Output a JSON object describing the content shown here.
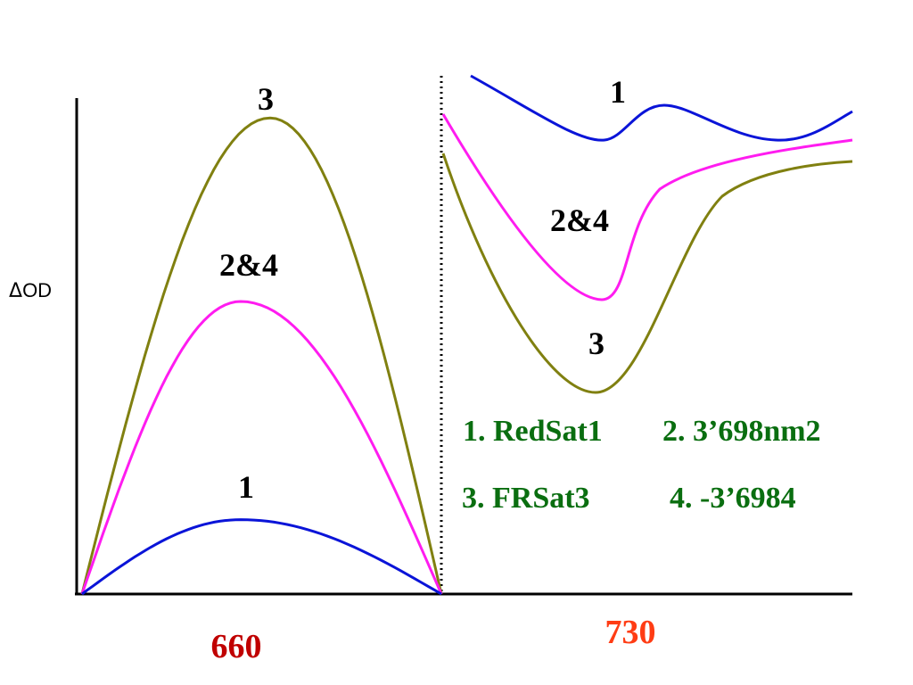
{
  "colors": {
    "series_1": "#0a14d8",
    "series_2_4": "#ff1cf0",
    "series_3": "#808010",
    "legend_green": "#0a6e10",
    "label_660": "#c00000",
    "label_730": "#ff3c14",
    "axis": "#000000"
  },
  "chart_data": [
    {
      "type": "line",
      "panel": "660",
      "xlabel": "660",
      "ylabel": "OD",
      "ylabel_symbol": "Δ",
      "grid": false,
      "series": [
        {
          "name": "1",
          "color": "#0a14d8",
          "peak": 0.15
        },
        {
          "name": "2&4",
          "color": "#ff1cf0",
          "peak": 0.59
        },
        {
          "name": "3",
          "color": "#808010",
          "peak": 0.96
        }
      ]
    },
    {
      "type": "line",
      "panel": "730",
      "xlabel": "730",
      "grid": false,
      "series": [
        {
          "name": "1",
          "color": "#0a14d8"
        },
        {
          "name": "2&4",
          "color": "#ff1cf0"
        },
        {
          "name": "3",
          "color": "#808010"
        }
      ]
    }
  ],
  "labels": {
    "left_3": "3",
    "left_2_4": "2&4",
    "left_1": "1",
    "right_1": "1",
    "right_2_4": "2&4",
    "right_3": "3"
  },
  "axes": {
    "ylabel_symbol": "Δ",
    "ylabel": "OD",
    "x_left": "660",
    "x_right": "730"
  },
  "legend": {
    "item1": "1. RedSat1",
    "item2": "2. 3’698nm2",
    "item3": "3. FRSat3",
    "item4": "4. -3’6984"
  }
}
